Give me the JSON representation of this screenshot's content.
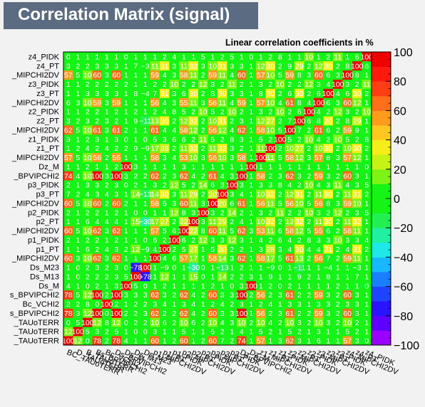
{
  "title": "Correlation Matrix (signal)",
  "subtitle": "Linear correlation coefficients in %",
  "chart_data": {
    "type": "heatmap",
    "title": "Correlation Matrix (signal)",
    "zlabel": "Linear correlation coefficients in %",
    "zlim": [
      -100,
      100
    ],
    "colorbar_ticks": [
      "100",
      "80",
      "60",
      "40",
      "20",
      "0",
      "−20",
      "−40",
      "−60",
      "−80",
      "−100"
    ],
    "palette": [
      "#9a00ff",
      "#5d00ff",
      "#2a13ff",
      "#1e44ff",
      "#1a7fff",
      "#18b8ff",
      "#1ee8e8",
      "#20f0a0",
      "#22f052",
      "#16f316",
      "#16f316",
      "#7df316",
      "#c6f216",
      "#f6ee18",
      "#ffc820",
      "#ff9c1e",
      "#ff6e1a",
      "#ff3e15",
      "#ff1a10",
      "#f00000"
    ],
    "labels": [
      "BC_TAUoTERR",
      "D_TAUoTERR",
      "B_TAUoTERR",
      "Bs_BPVIPCHI2",
      "Bc_VCHI2",
      "Ds_BPVIPCHI2",
      "Ds_M",
      "Ds_M13",
      "Ds_M23",
      "p1_MIPCHI2DV",
      "p1_PT",
      "p1_PIDK",
      "p2_MIPCHI2DV",
      "p2_PT",
      "p2_PIDK",
      "p3_MIPCHI2DV",
      "p3_PT",
      "p3_PIDK",
      "Dz_BPVIPCHI2",
      "Dz_M",
      "z1_MIPCHI2DV",
      "z1_PT",
      "z1_PIDK",
      "z2_MIPCHI2DV",
      "z2_PT",
      "z2_PIDK",
      "z3_MIPCHI2DV",
      "z3_PT",
      "z3_PIDK",
      "z4_MIPCHI2DV",
      "z4_PT",
      "z4_PIDK"
    ],
    "row_labels_shown": [
      "z4_PIDK",
      "z4_PT",
      "_MIPCHI2DV",
      "z3_PIDK",
      "z3_PT",
      "_MIPCHI2DV",
      "z2_PIDK",
      "z2_PT",
      "_MIPCHI2DV",
      "z1_PIDK",
      "z1_PT",
      "_MIPCHI2DV",
      "Dz_M",
      "_BPVIPCHI2",
      "p3_PIDK",
      "p3_PT",
      "_MIPCHI2DV",
      "p2_PIDK",
      "p2_PT",
      "_MIPCHI2DV",
      "p1_PIDK",
      "p1_PT",
      "_MIPCHI2DV",
      "Ds_M23",
      "Ds_M13",
      "Ds_M",
      "s_BPVIPCHI2",
      "Bc_VCHI2",
      "s_BPVIPCHI2",
      "_TAUoTERR",
      "_TAUoTERR",
      "_TAUoTERR"
    ],
    "col_labels_shown": [
      "BC_TAUoTERR",
      "D_TAUoTERR",
      "B_TAUoTERR",
      "Bs_BPVIPCHI2",
      "Bc_VCHI2",
      "Ds_BPVIPCHI2",
      "Ds_M",
      "Ds_M13",
      "Ds_M23",
      "p1_MIPCHI2DV",
      "p1_PT",
      "p1_PIDK",
      "p2_MIPCHI2DV",
      "p2_PT",
      "p2_PIDK",
      "p3_MIPCHI2DV",
      "p3_PT",
      "p3_PIDK",
      "Dz_BPVIPCHI2",
      "Dz_M",
      "z1_MIPCHI2DV",
      "z1_PT",
      "z1_PIDK",
      "z2_MIPCHI2DV",
      "z2_PT",
      "z2_PIDK",
      "z3_MIPCHI2DV",
      "z3_PT",
      "z3_PIDK",
      "z4_MIPCHI2DV",
      "z4_PT",
      "z4_PIDK"
    ],
    "matrix": [
      [
        100,
        12,
        0,
        78,
        2,
        78,
        4,
        1,
        1,
        60,
        1,
        2,
        60,
        1,
        2,
        60,
        7,
        2,
        74,
        1,
        57,
        1,
        3,
        62,
        3,
        1,
        6,
        1,
        1,
        57,
        3,
        0
      ],
      [
        12,
        100,
        5,
        3,
        2,
        5,
        1,
        0,
        0,
        3,
        1,
        1,
        5,
        1,
        1,
        5,
        2,
        1,
        4,
        1,
        5,
        2,
        1,
        5,
        2,
        1,
        3,
        1,
        1,
        5,
        2,
        1
      ],
      [
        0,
        5,
        100,
        12,
        8,
        12,
        0,
        2,
        2,
        10,
        6,
        2,
        10,
        6,
        2,
        10,
        4,
        3,
        10,
        2,
        10,
        4,
        2,
        10,
        3,
        2,
        10,
        3,
        2,
        10,
        2,
        1
      ],
      [
        78,
        3,
        12,
        100,
        0,
        100,
        2,
        2,
        3,
        62,
        2,
        2,
        62,
        4,
        2,
        60,
        3,
        3,
        100,
        1,
        56,
        2,
        3,
        61,
        2,
        2,
        59,
        3,
        2,
        60,
        3,
        1
      ],
      [
        2,
        2,
        8,
        0,
        100,
        2,
        1,
        2,
        2,
        3,
        4,
        1,
        3,
        4,
        1,
        2,
        4,
        2,
        3,
        1,
        2,
        4,
        1,
        3,
        3,
        1,
        3,
        3,
        2,
        3,
        3,
        1
      ],
      [
        78,
        5,
        12,
        100,
        2,
        100,
        3,
        3,
        3,
        62,
        3,
        2,
        62,
        4,
        2,
        60,
        3,
        3,
        100,
        2,
        56,
        2,
        3,
        61,
        2,
        2,
        59,
        3,
        2,
        60,
        3,
        1
      ],
      [
        4,
        1,
        0,
        2,
        1,
        3,
        100,
        5,
        0,
        1,
        2,
        1,
        1,
        1,
        1,
        2,
        1,
        0,
        3,
        100,
        1,
        2,
        0,
        2,
        1,
        1,
        1,
        1,
        2,
        1,
        1,
        0
      ],
      [
        1,
        0,
        2,
        2,
        2,
        3,
        5,
        100,
        -78,
        1,
        12,
        1,
        1,
        15,
        0,
        1,
        14,
        2,
        2,
        3,
        1,
        9,
        1,
        1,
        9,
        2,
        1,
        8,
        1,
        1,
        7,
        1
      ],
      [
        1,
        0,
        2,
        3,
        2,
        3,
        0,
        -78,
        100,
        1,
        -9,
        0,
        1,
        -30,
        0,
        1,
        -13,
        1,
        2,
        1,
        1,
        -9,
        0,
        1,
        -11,
        1,
        1,
        -4,
        1,
        1,
        -3,
        1
      ],
      [
        60,
        3,
        10,
        62,
        3,
        62,
        1,
        1,
        1,
        100,
        4,
        6,
        57,
        17,
        1,
        58,
        14,
        3,
        62,
        1,
        58,
        17,
        5,
        61,
        13,
        2,
        56,
        7,
        2,
        59,
        11,
        1
      ],
      [
        1,
        1,
        6,
        2,
        4,
        3,
        2,
        12,
        -9,
        4,
        100,
        2,
        5,
        27,
        1,
        5,
        30,
        2,
        2,
        1,
        3,
        28,
        3,
        4,
        30,
        4,
        4,
        31,
        2,
        4,
        31,
        2
      ],
      [
        2,
        1,
        2,
        2,
        1,
        2,
        1,
        1,
        0,
        6,
        2,
        100,
        6,
        2,
        12,
        3,
        3,
        12,
        3,
        1,
        4,
        2,
        6,
        4,
        2,
        8,
        3,
        3,
        10,
        3,
        3,
        4
      ],
      [
        60,
        5,
        10,
        62,
        3,
        62,
        1,
        1,
        1,
        57,
        5,
        6,
        100,
        22,
        8,
        60,
        11,
        5,
        62,
        3,
        53,
        11,
        6,
        58,
        12,
        5,
        55,
        6,
        2,
        58,
        11,
        1
      ],
      [
        1,
        1,
        6,
        4,
        4,
        4,
        1,
        15,
        -30,
        17,
        27,
        2,
        22,
        100,
        3,
        11,
        29,
        2,
        4,
        1,
        10,
        32,
        2,
        12,
        32,
        2,
        11,
        30,
        2,
        11,
        32,
        1
      ],
      [
        2,
        1,
        2,
        2,
        1,
        2,
        1,
        0,
        0,
        1,
        1,
        12,
        8,
        3,
        100,
        3,
        2,
        14,
        2,
        1,
        3,
        2,
        11,
        2,
        2,
        10,
        3,
        2,
        12,
        2,
        3,
        5
      ],
      [
        60,
        5,
        10,
        60,
        2,
        60,
        2,
        1,
        1,
        58,
        5,
        3,
        60,
        11,
        3,
        100,
        20,
        6,
        61,
        1,
        56,
        11,
        5,
        56,
        10,
        5,
        56,
        8,
        3,
        59,
        10,
        1
      ],
      [
        7,
        2,
        4,
        3,
        4,
        3,
        1,
        14,
        -13,
        14,
        30,
        3,
        11,
        29,
        2,
        20,
        100,
        3,
        4,
        1,
        10,
        32,
        2,
        12,
        31,
        2,
        11,
        30,
        2,
        11,
        31,
        2
      ],
      [
        2,
        1,
        3,
        3,
        2,
        3,
        0,
        2,
        1,
        3,
        2,
        12,
        5,
        2,
        14,
        6,
        3,
        100,
        3,
        1,
        3,
        3,
        8,
        4,
        2,
        10,
        4,
        3,
        11,
        4,
        3,
        5
      ],
      [
        74,
        4,
        10,
        100,
        3,
        100,
        3,
        2,
        2,
        62,
        2,
        3,
        62,
        4,
        2,
        61,
        4,
        3,
        100,
        1,
        58,
        2,
        3,
        62,
        3,
        2,
        59,
        3,
        2,
        60,
        3,
        1
      ],
      [
        1,
        1,
        2,
        1,
        1,
        2,
        100,
        3,
        1,
        1,
        1,
        1,
        3,
        1,
        1,
        1,
        1,
        1,
        1,
        100,
        1,
        1,
        1,
        1,
        1,
        1,
        1,
        1,
        1,
        1,
        1,
        0
      ],
      [
        57,
        5,
        10,
        56,
        2,
        56,
        1,
        1,
        1,
        58,
        3,
        4,
        53,
        10,
        3,
        56,
        10,
        3,
        58,
        1,
        100,
        11,
        5,
        58,
        12,
        3,
        57,
        8,
        3,
        57,
        12,
        1
      ],
      [
        1,
        2,
        4,
        2,
        4,
        2,
        2,
        9,
        -9,
        17,
        28,
        2,
        11,
        32,
        2,
        11,
        32,
        3,
        2,
        1,
        11,
        100,
        2,
        10,
        27,
        2,
        10,
        30,
        2,
        10,
        30,
        2
      ],
      [
        3,
        1,
        2,
        3,
        1,
        3,
        0,
        1,
        0,
        5,
        3,
        6,
        6,
        2,
        11,
        5,
        2,
        8,
        3,
        1,
        5,
        2,
        100,
        5,
        2,
        10,
        4,
        2,
        10,
        5,
        2,
        8
      ],
      [
        62,
        5,
        10,
        61,
        3,
        61,
        2,
        1,
        1,
        61,
        4,
        4,
        58,
        12,
        2,
        56,
        12,
        4,
        62,
        1,
        58,
        10,
        5,
        100,
        7,
        2,
        61,
        6,
        2,
        59,
        9,
        1
      ],
      [
        3,
        2,
        3,
        2,
        3,
        2,
        1,
        9,
        -11,
        13,
        30,
        2,
        12,
        32,
        2,
        10,
        31,
        2,
        3,
        1,
        12,
        27,
        2,
        7,
        100,
        6,
        8,
        30,
        2,
        8,
        29,
        1
      ],
      [
        1,
        1,
        2,
        2,
        1,
        2,
        1,
        2,
        1,
        2,
        4,
        8,
        5,
        2,
        10,
        5,
        2,
        10,
        2,
        1,
        3,
        2,
        10,
        2,
        6,
        100,
        4,
        2,
        12,
        3,
        2,
        10
      ],
      [
        6,
        3,
        10,
        59,
        3,
        59,
        1,
        1,
        1,
        56,
        4,
        3,
        55,
        11,
        3,
        56,
        11,
        4,
        59,
        1,
        57,
        10,
        4,
        61,
        8,
        4,
        100,
        6,
        3,
        60,
        12,
        1
      ],
      [
        1,
        1,
        3,
        3,
        3,
        3,
        1,
        8,
        -4,
        7,
        31,
        3,
        6,
        30,
        2,
        8,
        30,
        3,
        3,
        1,
        8,
        30,
        2,
        6,
        30,
        2,
        6,
        100,
        4,
        6,
        30,
        2
      ],
      [
        1,
        1,
        2,
        2,
        2,
        2,
        2,
        1,
        1,
        2,
        2,
        10,
        2,
        2,
        12,
        3,
        2,
        11,
        2,
        1,
        3,
        2,
        10,
        2,
        2,
        12,
        3,
        4,
        100,
        3,
        2,
        11
      ],
      [
        57,
        5,
        10,
        60,
        3,
        60,
        1,
        1,
        1,
        59,
        4,
        3,
        58,
        11,
        2,
        59,
        11,
        4,
        60,
        1,
        57,
        10,
        5,
        59,
        8,
        3,
        60,
        6,
        3,
        100,
        8,
        1
      ],
      [
        3,
        2,
        2,
        3,
        3,
        3,
        1,
        7,
        -3,
        11,
        31,
        3,
        11,
        32,
        3,
        10,
        31,
        3,
        3,
        1,
        12,
        30,
        2,
        9,
        29,
        2,
        12,
        30,
        2,
        8,
        100,
        6
      ],
      [
        0,
        1,
        1,
        1,
        1,
        1,
        0,
        1,
        1,
        1,
        2,
        4,
        1,
        1,
        5,
        1,
        2,
        5,
        1,
        0,
        1,
        2,
        8,
        1,
        1,
        10,
        1,
        2,
        11,
        1,
        6,
        100
      ]
    ]
  }
}
